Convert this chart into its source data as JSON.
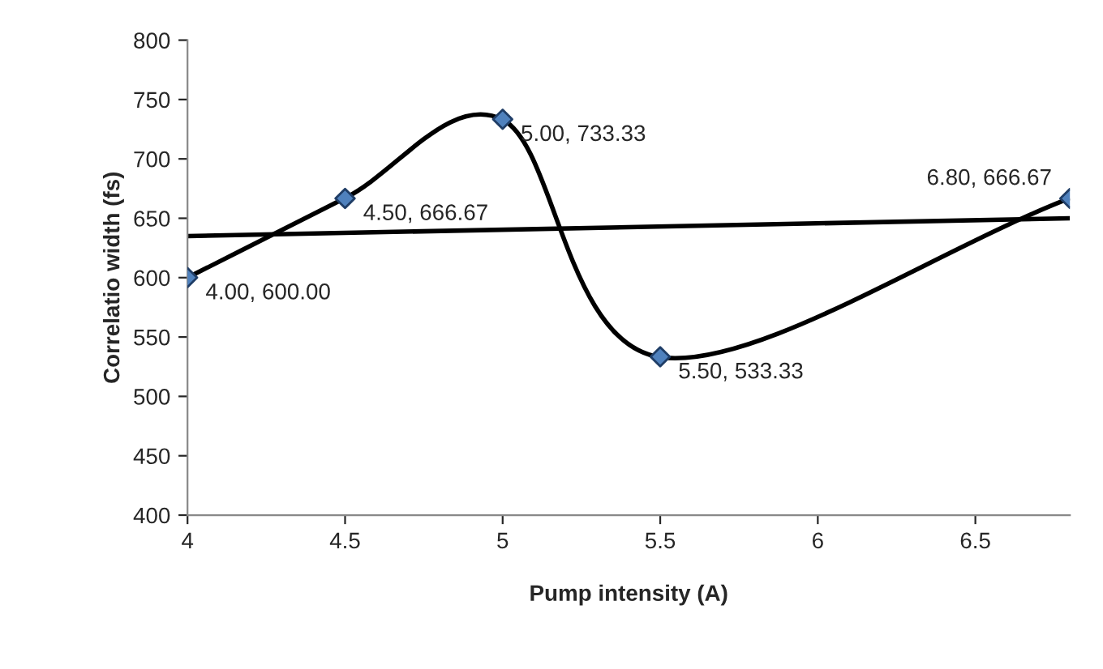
{
  "chart_data": {
    "type": "line",
    "xlabel": "Pump intensity (A)",
    "ylabel": "Correlatio width (fs)",
    "xlim": [
      4,
      6.8
    ],
    "xticks": [
      4,
      4.5,
      5,
      5.5,
      6,
      6.5
    ],
    "ylim": [
      400,
      800
    ],
    "yticks": [
      400,
      450,
      500,
      550,
      600,
      650,
      700,
      750,
      800
    ],
    "grid": false,
    "series": [
      {
        "type": "line",
        "color": "#000000",
        "marker": "none",
        "x": [
          4,
          4.5,
          5,
          5.5,
          6.8
        ],
        "values": [
          600,
          667,
          733,
          533,
          667
        ]
      },
      {
        "type": "scatter",
        "color": "#4f81bd",
        "marker": "diamond",
        "x": [
          4,
          4.5,
          5,
          5.5,
          6.8
        ],
        "values": [
          600,
          666.67,
          733.33,
          533.33,
          666.67
        ],
        "value_labels": [
          "4.00, 600.00",
          "4.50, 666.67",
          "5.00, 733.33",
          "5.50, 533.33",
          "6.80, 666.67"
        ]
      },
      {
        "color": "#000000",
        "marker": "none",
        "x": [
          4,
          6.8
        ],
        "values": [
          635,
          650
        ]
      }
    ]
  }
}
